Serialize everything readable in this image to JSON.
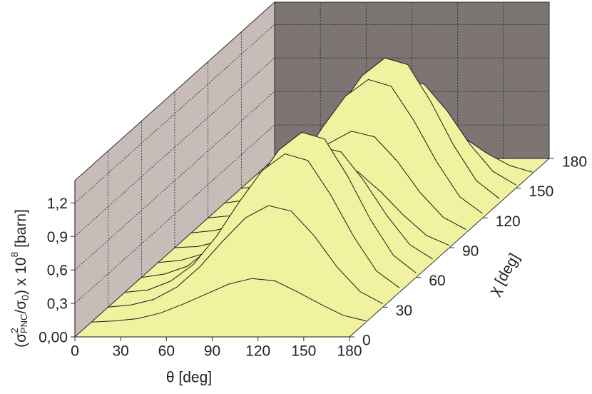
{
  "chart_data": {
    "type": "surface",
    "xlabel": "θ [deg]",
    "ylabel": "χ [deg]",
    "zlabel": [
      "(σ",
      "2",
      "PNC",
      "/σ",
      "0",
      ") x 10",
      "8",
      " [barn]"
    ],
    "xlim": [
      0,
      180
    ],
    "xticks": [
      0,
      30,
      60,
      90,
      120,
      150,
      180
    ],
    "ylim": [
      0,
      180
    ],
    "yticks": [
      0,
      30,
      60,
      90,
      120,
      150,
      180
    ],
    "zlim": [
      0,
      1.4
    ],
    "zticks": [
      {
        "value": 0,
        "label": "0,00"
      },
      {
        "value": 0.3,
        "label": "0,3"
      },
      {
        "value": 0.6,
        "label": "0,6"
      },
      {
        "value": 0.9,
        "label": "0,9"
      },
      {
        "value": 1.2,
        "label": "1,2"
      }
    ],
    "grid": true,
    "color": "#f0f2a0",
    "x": [
      0,
      15,
      30,
      45,
      60,
      75,
      90,
      105,
      120,
      135,
      150,
      165,
      180
    ],
    "y": [
      0,
      15,
      30,
      45,
      60,
      75,
      90,
      105,
      120,
      135,
      150,
      165,
      180
    ],
    "z": [
      [
        0,
        0,
        0,
        0,
        0,
        0,
        0,
        0,
        0,
        0,
        0,
        0,
        0
      ],
      [
        0,
        0.01,
        0.03,
        0.08,
        0.16,
        0.25,
        0.34,
        0.39,
        0.37,
        0.27,
        0.16,
        0.06,
        0.01
      ],
      [
        0,
        0.02,
        0.07,
        0.18,
        0.36,
        0.59,
        0.8,
        0.91,
        0.86,
        0.64,
        0.36,
        0.14,
        0.03
      ],
      [
        0,
        0.02,
        0.1,
        0.25,
        0.5,
        0.81,
        1.09,
        1.24,
        1.18,
        0.87,
        0.5,
        0.19,
        0.04
      ],
      [
        0,
        0.03,
        0.1,
        0.26,
        0.52,
        0.85,
        1.14,
        1.3,
        1.24,
        0.91,
        0.52,
        0.2,
        0.04
      ],
      [
        0,
        0.02,
        0.08,
        0.21,
        0.42,
        0.68,
        0.92,
        1.04,
        0.99,
        0.73,
        0.42,
        0.16,
        0.03
      ],
      [
        0,
        0.01,
        0.06,
        0.14,
        0.29,
        0.47,
        0.63,
        0.72,
        0.68,
        0.5,
        0.29,
        0.11,
        0.02
      ],
      [
        0,
        0.02,
        0.07,
        0.18,
        0.36,
        0.59,
        0.8,
        0.91,
        0.86,
        0.64,
        0.36,
        0.14,
        0.03
      ],
      [
        0,
        0.02,
        0.1,
        0.25,
        0.5,
        0.81,
        1.09,
        1.24,
        1.18,
        0.87,
        0.5,
        0.19,
        0.04
      ],
      [
        0,
        0.03,
        0.1,
        0.26,
        0.52,
        0.85,
        1.14,
        1.3,
        1.24,
        0.91,
        0.52,
        0.2,
        0.04
      ],
      [
        0,
        0.02,
        0.08,
        0.2,
        0.39,
        0.64,
        0.86,
        0.98,
        0.93,
        0.69,
        0.39,
        0.15,
        0.03
      ],
      [
        0,
        0.01,
        0.04,
        0.09,
        0.18,
        0.3,
        0.4,
        0.46,
        0.44,
        0.32,
        0.18,
        0.07,
        0.01
      ],
      [
        0,
        0,
        0,
        0,
        0,
        0,
        0,
        0,
        0,
        0,
        0,
        0,
        0
      ]
    ]
  }
}
